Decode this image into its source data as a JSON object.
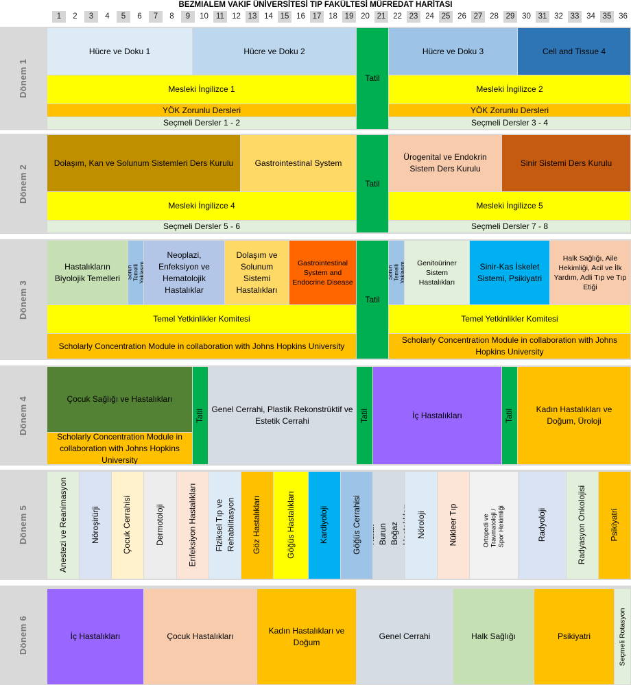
{
  "title": "BEZMIALEM VAKIF ÜNİVERSİTESİ TIP FAKÜLTESİ MÜFREDAT HARİTASI",
  "weeks": [
    "1",
    "2",
    "3",
    "4",
    "5",
    "6",
    "7",
    "8",
    "9",
    "10",
    "11",
    "12",
    "13",
    "14",
    "15",
    "16",
    "17",
    "18",
    "19",
    "20",
    "21",
    "22",
    "23",
    "24",
    "25",
    "26",
    "27",
    "28",
    "29",
    "30",
    "31",
    "32",
    "33",
    "34",
    "35",
    "36"
  ],
  "terms": {
    "d1": "Dönem 1",
    "d2": "Dönem 2",
    "d3": "Dönem 3",
    "d4": "Dönem 4",
    "d5": "Dönem 5",
    "d6": "Dönem 6"
  },
  "colors": {
    "yellow": "#ffff00",
    "orange_gold": "#ffc000",
    "green_tatil": "#00b050",
    "light_green": "#e2efda",
    "light_blue": "#bdd7ee",
    "mid_blue": "#9dc3e6",
    "dark_blue": "#2e75b6",
    "olive": "#bf8f00",
    "sand": "#ffd966",
    "salmon": "#f8cbad",
    "rust": "#c55a11",
    "purple": "#9966ff",
    "cyan": "#00b0f0",
    "dark_green": "#548235",
    "grey_cell": "#d6dce4"
  },
  "d1": {
    "hucre1": "Hücre ve Doku 1",
    "hucre2": "Hücre ve Doku 2",
    "hucre3": "Hücre ve Doku 3",
    "cell4": "Cell and Tissue 4",
    "tatil": "Tatil",
    "ing1": "Mesleki İngilizce 1",
    "ing2": "Mesleki İngilizce 2",
    "yok1": "YÖK Zorunlu Dersleri",
    "yok2": "YÖK Zorunlu Dersleri",
    "sec1": "Seçmeli Dersler 1 - 2",
    "sec2": "Seçmeli Dersler 3 - 4"
  },
  "d2": {
    "dolasim": "Dolaşım, Kan ve Solunum Sistemleri Ders Kurulu",
    "gis": "Gastrointestinal System",
    "uro": "Ürogenital ve Endokrin Sistem Ders Kurulu",
    "sinir": "Sinir Sistemi Ders Kurulu",
    "tatil": "Tatil",
    "ing4": "Mesleki İngilizce 4",
    "ing5": "Mesleki İngilizce 5",
    "sec1": "Seçmeli Dersler 5 - 6",
    "sec2": "Seçmeli Dersler 7 - 8"
  },
  "d3": {
    "hbt": "Hastalıkların Biyolojik Temelleri",
    "sty1": "Sorun Temelli Yaklaşım",
    "neo": "Neoplazi, Enfeksiyon ve Hematolojik Hastalıklar",
    "dol": "Dolaşım ve Solunum Sistemi Hastalıkları",
    "gis": "Gastrointestinal System and Endocrine Disease",
    "sty2": "Sorun Temelli Yaklaşım",
    "geni": "Genitoüriner Sistem Hastalıkları",
    "sinir": "Sinir-Kas İskelet Sistemi, Psikiyatri",
    "halk": "Halk Sağlığı, Aile Hekimliği, Acil ve İlk Yardım, Adli Tıp ve Tıp Etiği",
    "tatil": "Tatil",
    "tyk1": "Temel Yetkinlikler Komitesi",
    "tyk2": "Temel Yetkinlikler Komitesi",
    "scm1": "Scholarly Concentration Module in collaboration with Johns Hopkins University",
    "scm2": "Scholarly Concentration Module in collaboration with Johns Hopkins University"
  },
  "d4": {
    "cocuk": "Çocuk Sağlığı ve Hastalıkları",
    "scm": "Scholarly Concentration Module in collaboration with Johns Hopkins University",
    "tatil1": "Tatil",
    "genel": "Genel Cerrahi, Plastik Rekonstrüktif ve Estetik Cerrahi",
    "tatil2": "Tatil",
    "ic": "İç Hastalıkları",
    "tatil3": "Tatil",
    "kadin": "Kadın Hastalıkları ve Doğum, Üroloji"
  },
  "d5": {
    "c1": "Anestezi ve Reanimasyon",
    "c2": "Nöroşirürji",
    "c3": "Çocuk Cerrahisi",
    "c4": "Dermotoloji",
    "c5": "Enfeksiyon Hastalıkları",
    "c6": "Fiziksel Tıp ve Rehabilitasyon",
    "c7": "Göz Hastalıkları",
    "c8": "Göğüs Hastalıkları",
    "c9": "Kardiyoloji",
    "c10": "Göğüs Cerrahisi",
    "c11": "Kulak Burun Boğaz Hastalıkları",
    "c12": "Nöroloji",
    "c13": "Nükleer Tıp",
    "c14": "Ortopedi ve Travmatoloji / Spor Hekimliği",
    "c15": "Radyoloji",
    "c16": "Radyasyon Onkolojisi",
    "c17": "Psikiyatri"
  },
  "d6": {
    "ic": "İç Hastalıkları",
    "cocuk": "Çocuk Hastalıkları",
    "kadin": "Kadın Hastalıkları ve Doğum",
    "genel": "Genel Cerrahi",
    "halk": "Halk Sağlığı",
    "psik": "Psikiyatri",
    "secmeli": "Seçmeli Rotasyon"
  }
}
